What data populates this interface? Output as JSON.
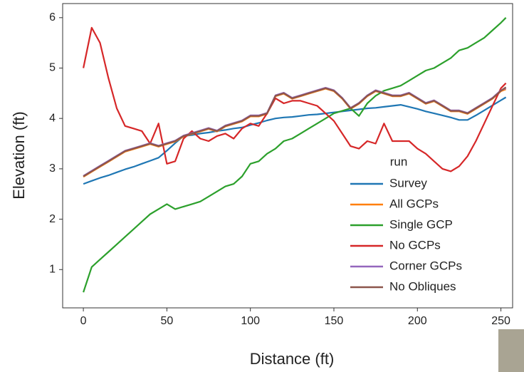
{
  "chart_data": {
    "type": "line",
    "xlabel": "Distance (ft)",
    "ylabel": "Elevation (ft)",
    "legend_title": "run",
    "legend": "lower right",
    "grid": false,
    "xlim": [
      -12.4,
      257
    ],
    "ylim": [
      0.24,
      6.28
    ],
    "xticks": [
      0,
      50,
      100,
      150,
      200,
      250
    ],
    "yticks": [
      1,
      2,
      3,
      4,
      5,
      6
    ],
    "x": [
      0,
      5,
      10,
      15,
      20,
      25,
      30,
      35,
      40,
      45,
      50,
      55,
      60,
      65,
      70,
      75,
      80,
      85,
      90,
      95,
      100,
      105,
      110,
      115,
      120,
      125,
      130,
      135,
      140,
      145,
      150,
      155,
      160,
      165,
      170,
      175,
      180,
      185,
      190,
      195,
      200,
      205,
      210,
      215,
      220,
      225,
      230,
      235,
      240,
      245,
      250,
      253
    ],
    "series": [
      {
        "name": "Survey",
        "color": "#1f77b4",
        "values": [
          2.7,
          2.76,
          2.82,
          2.87,
          2.93,
          2.99,
          3.04,
          3.1,
          3.16,
          3.22,
          3.36,
          3.51,
          3.65,
          3.67,
          3.7,
          3.72,
          3.75,
          3.77,
          3.8,
          3.82,
          3.87,
          3.91,
          3.96,
          4.0,
          4.02,
          4.03,
          4.05,
          4.07,
          4.08,
          4.1,
          4.12,
          4.14,
          4.16,
          4.18,
          4.2,
          4.21,
          4.23,
          4.25,
          4.27,
          4.23,
          4.19,
          4.14,
          4.1,
          4.06,
          4.02,
          3.97,
          3.97,
          4.06,
          4.16,
          4.26,
          4.36,
          4.42
        ]
      },
      {
        "name": "All GCPs",
        "color": "#ff7f0e",
        "values": [
          2.84,
          2.94,
          3.04,
          3.14,
          3.24,
          3.34,
          3.39,
          3.44,
          3.49,
          3.44,
          3.49,
          3.54,
          3.64,
          3.69,
          3.74,
          3.79,
          3.74,
          3.84,
          3.89,
          3.94,
          4.04,
          4.04,
          4.09,
          4.44,
          4.49,
          4.39,
          4.44,
          4.49,
          4.54,
          4.59,
          4.54,
          4.39,
          4.19,
          4.29,
          4.44,
          4.54,
          4.49,
          4.44,
          4.44,
          4.49,
          4.39,
          4.29,
          4.34,
          4.24,
          4.14,
          4.14,
          4.09,
          4.19,
          4.29,
          4.39,
          4.54,
          4.58
        ]
      },
      {
        "name": "Single GCP",
        "color": "#2ca02c",
        "values": [
          0.55,
          1.05,
          1.2,
          1.35,
          1.5,
          1.65,
          1.8,
          1.95,
          2.1,
          2.2,
          2.3,
          2.2,
          2.25,
          2.3,
          2.35,
          2.45,
          2.55,
          2.65,
          2.7,
          2.85,
          3.1,
          3.15,
          3.3,
          3.4,
          3.55,
          3.6,
          3.7,
          3.8,
          3.9,
          4.0,
          4.1,
          4.15,
          4.2,
          4.05,
          4.3,
          4.45,
          4.55,
          4.6,
          4.65,
          4.75,
          4.85,
          4.95,
          5.0,
          5.1,
          5.2,
          5.35,
          5.4,
          5.5,
          5.6,
          5.75,
          5.9,
          6.0
        ]
      },
      {
        "name": "No GCPs",
        "color": "#d62728",
        "values": [
          5.0,
          5.8,
          5.5,
          4.8,
          4.2,
          3.85,
          3.8,
          3.75,
          3.5,
          3.9,
          3.1,
          3.15,
          3.6,
          3.75,
          3.6,
          3.55,
          3.65,
          3.7,
          3.6,
          3.8,
          3.9,
          3.85,
          4.1,
          4.4,
          4.3,
          4.35,
          4.35,
          4.3,
          4.25,
          4.1,
          3.95,
          3.7,
          3.45,
          3.4,
          3.55,
          3.5,
          3.9,
          3.55,
          3.55,
          3.55,
          3.4,
          3.3,
          3.15,
          3.0,
          2.95,
          3.05,
          3.25,
          3.55,
          3.9,
          4.25,
          4.6,
          4.7
        ]
      },
      {
        "name": "Corner GCPs",
        "color": "#9467bd",
        "values": [
          2.86,
          2.96,
          3.06,
          3.16,
          3.26,
          3.36,
          3.41,
          3.46,
          3.51,
          3.46,
          3.51,
          3.56,
          3.66,
          3.71,
          3.76,
          3.81,
          3.76,
          3.86,
          3.91,
          3.96,
          4.06,
          4.06,
          4.11,
          4.46,
          4.51,
          4.41,
          4.46,
          4.51,
          4.56,
          4.61,
          4.56,
          4.41,
          4.21,
          4.31,
          4.46,
          4.56,
          4.51,
          4.46,
          4.46,
          4.51,
          4.41,
          4.31,
          4.36,
          4.26,
          4.16,
          4.16,
          4.11,
          4.21,
          4.31,
          4.41,
          4.56,
          4.6
        ]
      },
      {
        "name": "No Obliques",
        "color": "#8c564b",
        "values": [
          2.85,
          2.95,
          3.05,
          3.15,
          3.25,
          3.35,
          3.4,
          3.45,
          3.5,
          3.45,
          3.5,
          3.55,
          3.65,
          3.7,
          3.75,
          3.8,
          3.75,
          3.85,
          3.9,
          3.95,
          4.05,
          4.05,
          4.1,
          4.45,
          4.5,
          4.4,
          4.45,
          4.5,
          4.55,
          4.6,
          4.55,
          4.4,
          4.2,
          4.3,
          4.45,
          4.55,
          4.5,
          4.45,
          4.45,
          4.5,
          4.4,
          4.3,
          4.35,
          4.25,
          4.15,
          4.15,
          4.1,
          4.2,
          4.3,
          4.4,
          4.55,
          4.62
        ]
      }
    ]
  }
}
